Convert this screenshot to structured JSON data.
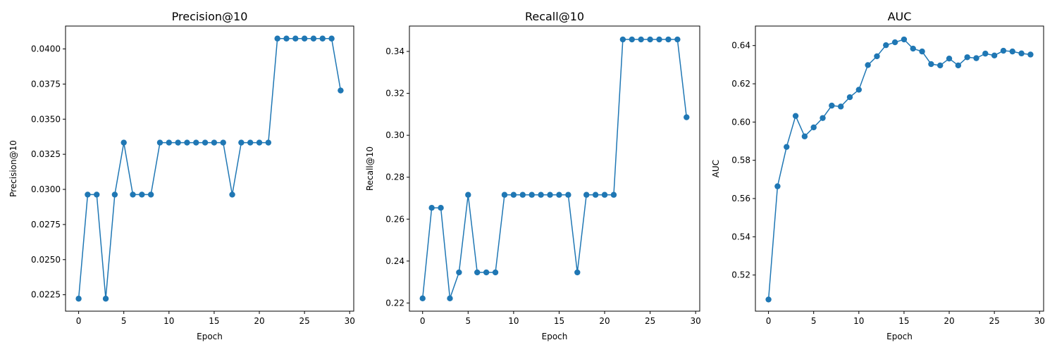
{
  "colors": {
    "series": "#1f77b4",
    "axis": "#000000",
    "background": "#ffffff"
  },
  "chart_data": [
    {
      "type": "line",
      "title": "Precision@10",
      "xlabel": "Epoch",
      "ylabel": "Precision@10",
      "xlim": [
        -1.45,
        30.45
      ],
      "ylim": [
        0.02133,
        0.04163
      ],
      "xticks": [
        0,
        5,
        10,
        15,
        20,
        25,
        30
      ],
      "yticks": [
        0.0225,
        0.025,
        0.0275,
        0.03,
        0.0325,
        0.035,
        0.0375,
        0.04
      ],
      "ytick_labels": [
        "0.0225",
        "0.0250",
        "0.0275",
        "0.0300",
        "0.0325",
        "0.0350",
        "0.0375",
        "0.0400"
      ],
      "grid": false,
      "legend": "none",
      "marker": "circle",
      "x": [
        0,
        1,
        2,
        3,
        4,
        5,
        6,
        7,
        8,
        9,
        10,
        11,
        12,
        13,
        14,
        15,
        16,
        17,
        18,
        19,
        20,
        21,
        22,
        23,
        24,
        25,
        26,
        27,
        28,
        29
      ],
      "y": [
        0.02222,
        0.02963,
        0.02963,
        0.02222,
        0.02963,
        0.03333,
        0.02963,
        0.02963,
        0.02963,
        0.03333,
        0.03333,
        0.03333,
        0.03333,
        0.03333,
        0.03333,
        0.03333,
        0.03333,
        0.02963,
        0.03333,
        0.03333,
        0.03333,
        0.03333,
        0.04074,
        0.04074,
        0.04074,
        0.04074,
        0.04074,
        0.04074,
        0.04074,
        0.03704
      ]
    },
    {
      "type": "line",
      "title": "Recall@10",
      "xlabel": "Epoch",
      "ylabel": "Recall@10",
      "xlim": [
        -1.45,
        30.45
      ],
      "ylim": [
        0.2161,
        0.3521
      ],
      "xticks": [
        0,
        5,
        10,
        15,
        20,
        25,
        30
      ],
      "yticks": [
        0.22,
        0.24,
        0.26,
        0.28,
        0.3,
        0.32,
        0.34
      ],
      "ytick_labels": [
        "0.22",
        "0.24",
        "0.26",
        "0.28",
        "0.30",
        "0.32",
        "0.34"
      ],
      "grid": false,
      "legend": "none",
      "marker": "circle",
      "x": [
        0,
        1,
        2,
        3,
        4,
        5,
        6,
        7,
        8,
        9,
        10,
        11,
        12,
        13,
        14,
        15,
        16,
        17,
        18,
        19,
        20,
        21,
        22,
        23,
        24,
        25,
        26,
        27,
        28,
        29
      ],
      "y": [
        0.2222,
        0.2654,
        0.2654,
        0.2222,
        0.2346,
        0.2716,
        0.2346,
        0.2346,
        0.2346,
        0.2716,
        0.2716,
        0.2716,
        0.2716,
        0.2716,
        0.2716,
        0.2716,
        0.2716,
        0.2346,
        0.2716,
        0.2716,
        0.2716,
        0.2716,
        0.3457,
        0.3457,
        0.3457,
        0.3457,
        0.3457,
        0.3457,
        0.3457,
        0.3086
      ]
    },
    {
      "type": "line",
      "title": "AUC",
      "xlabel": "Epoch",
      "ylabel": "AUC",
      "xlim": [
        -1.45,
        30.45
      ],
      "ylim": [
        0.5011,
        0.6502
      ],
      "xticks": [
        0,
        5,
        10,
        15,
        20,
        25,
        30
      ],
      "yticks": [
        0.52,
        0.54,
        0.56,
        0.58,
        0.6,
        0.62,
        0.64
      ],
      "ytick_labels": [
        "0.52",
        "0.54",
        "0.56",
        "0.58",
        "0.60",
        "0.62",
        "0.64"
      ],
      "grid": false,
      "legend": "none",
      "marker": "circle",
      "x": [
        0,
        1,
        2,
        3,
        4,
        5,
        6,
        7,
        8,
        9,
        10,
        11,
        12,
        13,
        14,
        15,
        16,
        17,
        18,
        19,
        20,
        21,
        22,
        23,
        24,
        25,
        26,
        27,
        28,
        29
      ],
      "y": [
        0.5072,
        0.5664,
        0.587,
        0.6032,
        0.5925,
        0.5972,
        0.6021,
        0.6086,
        0.6081,
        0.613,
        0.6169,
        0.6298,
        0.6344,
        0.6402,
        0.6417,
        0.6432,
        0.6384,
        0.6369,
        0.6303,
        0.6296,
        0.6332,
        0.6296,
        0.6339,
        0.6334,
        0.6358,
        0.6348,
        0.6373,
        0.6369,
        0.6359,
        0.6353
      ]
    }
  ]
}
